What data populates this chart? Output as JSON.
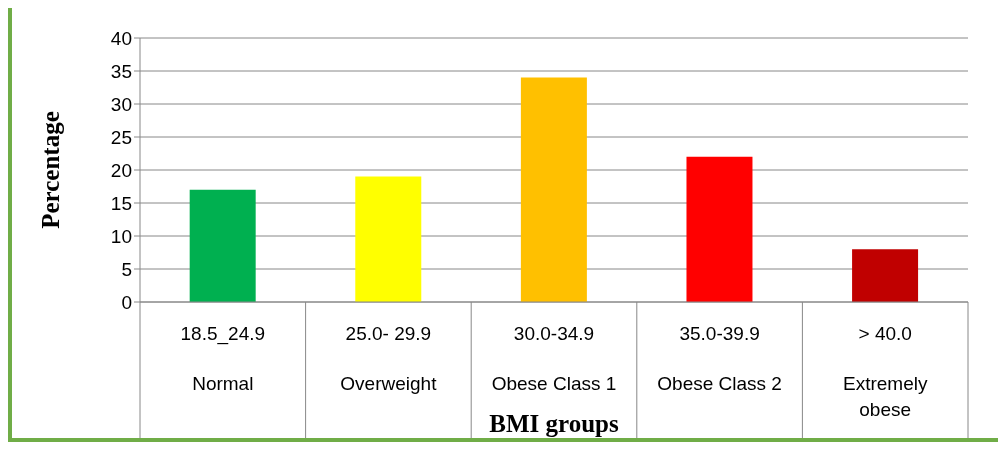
{
  "chart_data": {
    "type": "bar",
    "xlabel": "BMI groups",
    "ylabel": "Percentage",
    "categories": [
      "18.5_24.9\nNormal",
      "25.0- 29.9\nOverweight",
      "30.0-34.9\nObese Class 1",
      "35.0-39.9\nObese Class 2",
      "> 40.0\nExtremely obese"
    ],
    "values": [
      17,
      19,
      34,
      22,
      8
    ],
    "colors": [
      "#00b050",
      "#ffff00",
      "#ffc000",
      "#ff0000",
      "#c00000"
    ],
    "ylim": [
      0,
      40
    ],
    "yticks": [
      0,
      5,
      10,
      15,
      20,
      25,
      30,
      35,
      40
    ],
    "grid": "y"
  }
}
